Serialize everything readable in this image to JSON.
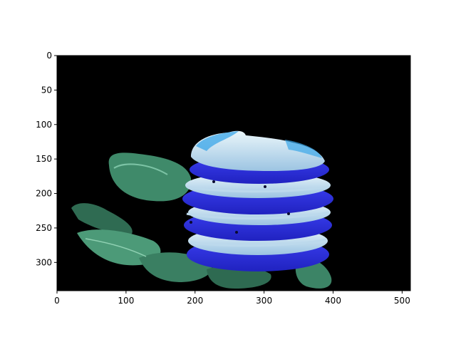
{
  "figure": {
    "image_extent": {
      "x": [
        0,
        512
      ],
      "y": [
        0,
        341
      ]
    },
    "x_ticks": [
      "0",
      "100",
      "200",
      "300",
      "400",
      "500"
    ],
    "y_ticks": [
      "0",
      "50",
      "100",
      "150",
      "200",
      "250",
      "300"
    ],
    "x_tick_values": [
      0,
      100,
      200,
      300,
      400,
      500
    ],
    "y_tick_values": [
      0,
      50,
      100,
      150,
      200,
      250,
      300
    ],
    "colors": {
      "background": "#000000",
      "leaf_dark": "#2f6b52",
      "leaf_mid": "#3f8a6a",
      "leaf_light": "#6fb79a",
      "tomato_blue": "#2b2fe0",
      "tomato_edge": "#1f22b8",
      "mozzarella": "#dfeef2",
      "mozzarella_shadow": "#8fb8d8",
      "cyan_highlight": "#3aa6e8"
    },
    "image_description_icon": "caprese-stack-photo"
  }
}
